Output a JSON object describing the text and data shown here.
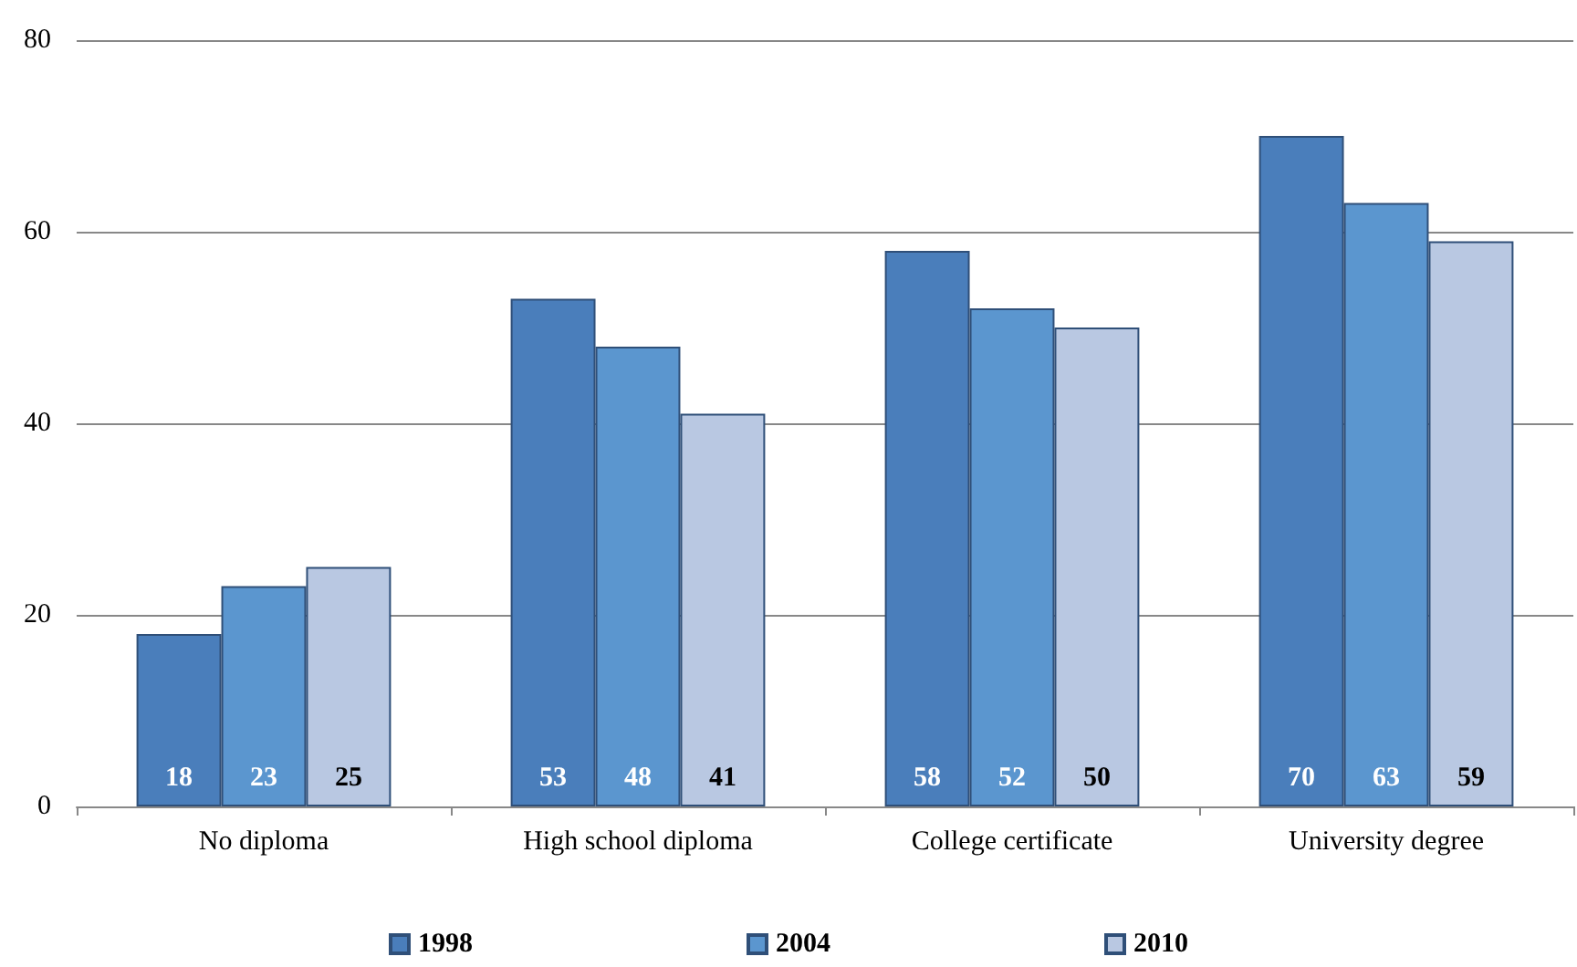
{
  "chart_data": {
    "type": "bar",
    "categories": [
      "No diploma",
      "High school diploma",
      "College certificate",
      "University degree"
    ],
    "series": [
      {
        "name": "1998",
        "color": "#4a7ebb",
        "values": [
          18,
          53,
          58,
          70
        ]
      },
      {
        "name": "2004",
        "color": "#5b96cf",
        "values": [
          23,
          48,
          52,
          63
        ]
      },
      {
        "name": "2010",
        "color": "#b9c8e2",
        "values": [
          25,
          41,
          50,
          59
        ]
      }
    ],
    "ylim": [
      0,
      80
    ],
    "yticks": [
      0,
      20,
      40,
      60,
      80
    ],
    "grid": "y",
    "legend": "bottom",
    "data_labels": true
  }
}
